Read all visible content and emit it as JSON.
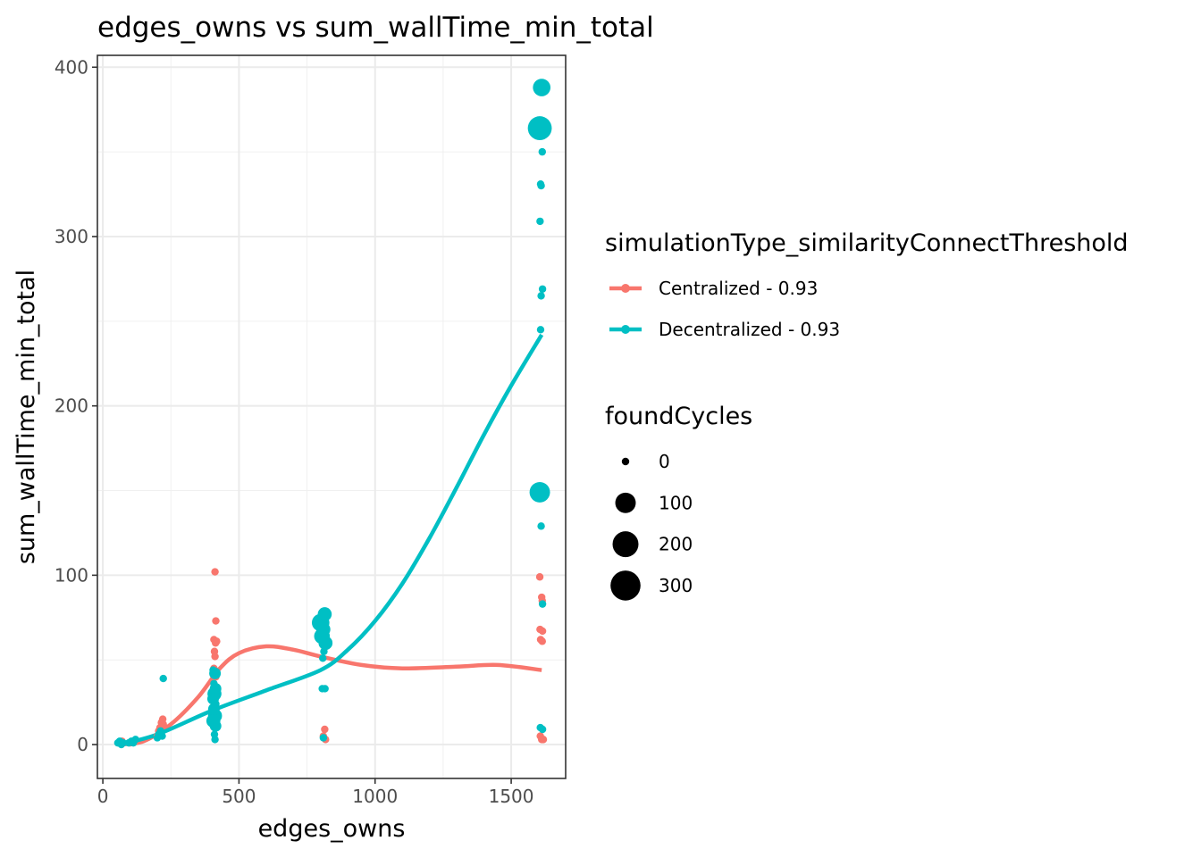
{
  "chart_data": {
    "type": "scatter",
    "title": "edges_owns  vs  sum_wallTime_min_total",
    "xlabel": "edges_owns",
    "ylabel": "sum_wallTime_min_total",
    "xlim": [
      -20,
      1700
    ],
    "ylim": [
      -20,
      407
    ],
    "x_ticks": [
      0,
      500,
      1000,
      1500
    ],
    "y_ticks": [
      0,
      100,
      200,
      300,
      400
    ],
    "grid": true,
    "legend_position": "right",
    "color_legend": {
      "title": "simulationType_similarityConnectThreshold",
      "entries": [
        {
          "label": "Centralized - 0.93",
          "color": "#F8766D"
        },
        {
          "label": "Decentralized - 0.93",
          "color": "#00BFC4"
        }
      ]
    },
    "size_legend": {
      "title": "foundCycles",
      "entries": [
        {
          "label": "0",
          "value": 0
        },
        {
          "label": "100",
          "value": 100
        },
        {
          "label": "200",
          "value": 200
        },
        {
          "label": "300",
          "value": 300
        }
      ]
    },
    "series": [
      {
        "name": "Centralized - 0.93",
        "color": "#F8766D",
        "points": [
          {
            "x": 60,
            "y": 1,
            "cycles": 0
          },
          {
            "x": 70,
            "y": 2,
            "cycles": 0
          },
          {
            "x": 100,
            "y": 1,
            "cycles": 0
          },
          {
            "x": 110,
            "y": 2,
            "cycles": 0
          },
          {
            "x": 200,
            "y": 5,
            "cycles": 0
          },
          {
            "x": 205,
            "y": 8,
            "cycles": 0
          },
          {
            "x": 210,
            "y": 10,
            "cycles": 0
          },
          {
            "x": 215,
            "y": 13,
            "cycles": 0
          },
          {
            "x": 220,
            "y": 15,
            "cycles": 0
          },
          {
            "x": 222,
            "y": 12,
            "cycles": 0
          },
          {
            "x": 412,
            "y": 102,
            "cycles": 0
          },
          {
            "x": 415,
            "y": 73,
            "cycles": 0
          },
          {
            "x": 408,
            "y": 62,
            "cycles": 0
          },
          {
            "x": 414,
            "y": 60,
            "cycles": 0
          },
          {
            "x": 418,
            "y": 61,
            "cycles": 0
          },
          {
            "x": 410,
            "y": 55,
            "cycles": 0
          },
          {
            "x": 412,
            "y": 52,
            "cycles": 0
          },
          {
            "x": 408,
            "y": 45,
            "cycles": 0
          },
          {
            "x": 415,
            "y": 40,
            "cycles": 0
          },
          {
            "x": 410,
            "y": 35,
            "cycles": 0
          },
          {
            "x": 805,
            "y": 62,
            "cycles": 0
          },
          {
            "x": 812,
            "y": 60,
            "cycles": 0
          },
          {
            "x": 820,
            "y": 58,
            "cycles": 0
          },
          {
            "x": 815,
            "y": 9,
            "cycles": 0
          },
          {
            "x": 810,
            "y": 5,
            "cycles": 0
          },
          {
            "x": 818,
            "y": 3,
            "cycles": 0
          },
          {
            "x": 1605,
            "y": 99,
            "cycles": 0
          },
          {
            "x": 1612,
            "y": 87,
            "cycles": 0
          },
          {
            "x": 1614,
            "y": 85,
            "cycles": 0
          },
          {
            "x": 1606,
            "y": 68,
            "cycles": 0
          },
          {
            "x": 1615,
            "y": 67,
            "cycles": 0
          },
          {
            "x": 1608,
            "y": 62,
            "cycles": 0
          },
          {
            "x": 1614,
            "y": 61,
            "cycles": 0
          },
          {
            "x": 1607,
            "y": 5,
            "cycles": 0
          },
          {
            "x": 1612,
            "y": 3,
            "cycles": 0
          },
          {
            "x": 1618,
            "y": 3,
            "cycles": 0
          }
        ],
        "smooth": [
          {
            "x": 60,
            "y": 0
          },
          {
            "x": 150,
            "y": 2
          },
          {
            "x": 250,
            "y": 12
          },
          {
            "x": 350,
            "y": 28
          },
          {
            "x": 430,
            "y": 45
          },
          {
            "x": 500,
            "y": 54
          },
          {
            "x": 600,
            "y": 58
          },
          {
            "x": 700,
            "y": 56
          },
          {
            "x": 800,
            "y": 52
          },
          {
            "x": 950,
            "y": 47
          },
          {
            "x": 1100,
            "y": 45
          },
          {
            "x": 1300,
            "y": 46
          },
          {
            "x": 1450,
            "y": 47
          },
          {
            "x": 1612,
            "y": 44
          }
        ]
      },
      {
        "name": "Decentralized - 0.93",
        "color": "#00BFC4",
        "points": [
          {
            "x": 55,
            "y": 1,
            "cycles": 0
          },
          {
            "x": 62,
            "y": 2,
            "cycles": 0
          },
          {
            "x": 68,
            "y": 0,
            "cycles": 0
          },
          {
            "x": 75,
            "y": 1,
            "cycles": 0
          },
          {
            "x": 95,
            "y": 1,
            "cycles": 0
          },
          {
            "x": 105,
            "y": 2,
            "cycles": 0
          },
          {
            "x": 112,
            "y": 1,
            "cycles": 0
          },
          {
            "x": 120,
            "y": 3,
            "cycles": 0
          },
          {
            "x": 200,
            "y": 4,
            "cycles": 0
          },
          {
            "x": 205,
            "y": 6,
            "cycles": 0
          },
          {
            "x": 212,
            "y": 8,
            "cycles": 0
          },
          {
            "x": 218,
            "y": 5,
            "cycles": 0
          },
          {
            "x": 222,
            "y": 39,
            "cycles": 0
          },
          {
            "x": 405,
            "y": 44,
            "cycles": 0
          },
          {
            "x": 412,
            "y": 42,
            "cycles": 10
          },
          {
            "x": 408,
            "y": 36,
            "cycles": 0
          },
          {
            "x": 414,
            "y": 33,
            "cycles": 10
          },
          {
            "x": 410,
            "y": 30,
            "cycles": 25
          },
          {
            "x": 405,
            "y": 27,
            "cycles": 10
          },
          {
            "x": 415,
            "y": 24,
            "cycles": 0
          },
          {
            "x": 408,
            "y": 21,
            "cycles": 10
          },
          {
            "x": 412,
            "y": 17,
            "cycles": 25
          },
          {
            "x": 406,
            "y": 14,
            "cycles": 25
          },
          {
            "x": 414,
            "y": 11,
            "cycles": 10
          },
          {
            "x": 410,
            "y": 6,
            "cycles": 0
          },
          {
            "x": 412,
            "y": 3,
            "cycles": 0
          },
          {
            "x": 800,
            "y": 72,
            "cycles": 60
          },
          {
            "x": 815,
            "y": 77,
            "cycles": 25
          },
          {
            "x": 810,
            "y": 68,
            "cycles": 25
          },
          {
            "x": 805,
            "y": 64,
            "cycles": 40
          },
          {
            "x": 818,
            "y": 60,
            "cycles": 25
          },
          {
            "x": 812,
            "y": 55,
            "cycles": 0
          },
          {
            "x": 808,
            "y": 51,
            "cycles": 0
          },
          {
            "x": 806,
            "y": 33,
            "cycles": 0
          },
          {
            "x": 816,
            "y": 33,
            "cycles": 0
          },
          {
            "x": 810,
            "y": 4,
            "cycles": 0
          },
          {
            "x": 1612,
            "y": 388,
            "cycles": 60
          },
          {
            "x": 1605,
            "y": 364,
            "cycles": 160
          },
          {
            "x": 1614,
            "y": 350,
            "cycles": 0
          },
          {
            "x": 1608,
            "y": 331,
            "cycles": 0
          },
          {
            "x": 1610,
            "y": 330,
            "cycles": 0
          },
          {
            "x": 1606,
            "y": 309,
            "cycles": 0
          },
          {
            "x": 1615,
            "y": 269,
            "cycles": 0
          },
          {
            "x": 1610,
            "y": 265,
            "cycles": 0
          },
          {
            "x": 1608,
            "y": 245,
            "cycles": 0
          },
          {
            "x": 1605,
            "y": 149,
            "cycles": 100
          },
          {
            "x": 1610,
            "y": 129,
            "cycles": 0
          },
          {
            "x": 1615,
            "y": 83,
            "cycles": 0
          },
          {
            "x": 1607,
            "y": 10,
            "cycles": 0
          },
          {
            "x": 1615,
            "y": 9,
            "cycles": 0
          }
        ],
        "smooth": [
          {
            "x": 60,
            "y": 0
          },
          {
            "x": 200,
            "y": 6
          },
          {
            "x": 400,
            "y": 20
          },
          {
            "x": 600,
            "y": 32
          },
          {
            "x": 800,
            "y": 44
          },
          {
            "x": 900,
            "y": 56
          },
          {
            "x": 1000,
            "y": 73
          },
          {
            "x": 1100,
            "y": 95
          },
          {
            "x": 1200,
            "y": 122
          },
          {
            "x": 1300,
            "y": 152
          },
          {
            "x": 1400,
            "y": 183
          },
          {
            "x": 1500,
            "y": 212
          },
          {
            "x": 1612,
            "y": 242
          }
        ]
      }
    ]
  }
}
